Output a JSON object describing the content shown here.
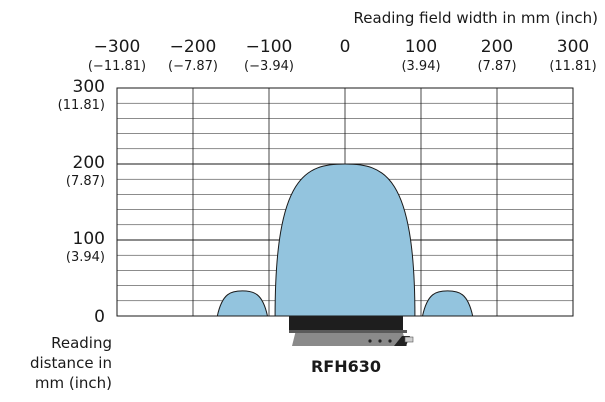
{
  "chart_data": {
    "type": "area",
    "title": "",
    "xlabel": "Reading field width in mm (inch)",
    "ylabel_lines": [
      "Reading",
      "distance in",
      "mm (inch)"
    ],
    "xlim": [
      -300,
      300
    ],
    "ylim": [
      0,
      300
    ],
    "x_ticks": [
      {
        "mm": "−300",
        "inch": "(−11.81)",
        "value": -300
      },
      {
        "mm": "−200",
        "inch": "(−7.87)",
        "value": -200
      },
      {
        "mm": "−100",
        "inch": "(−3.94)",
        "value": -100
      },
      {
        "mm": "0",
        "inch": "",
        "value": 0
      },
      {
        "mm": "100",
        "inch": "(3.94)",
        "value": 100
      },
      {
        "mm": "200",
        "inch": "(7.87)",
        "value": 200
      },
      {
        "mm": "300",
        "inch": "(11.81)",
        "value": 300
      }
    ],
    "y_ticks": [
      {
        "mm": "300",
        "inch": "(11.81)",
        "value": 300
      },
      {
        "mm": "200",
        "inch": "(7.87)",
        "value": 200
      },
      {
        "mm": "100",
        "inch": "(3.94)",
        "value": 100
      },
      {
        "mm": "0",
        "inch": "",
        "value": 0
      }
    ],
    "grid": true,
    "x_grid_step": 100,
    "y_minor_step": 20,
    "reading_field": {
      "fill": "#93c4de",
      "stroke": "#1a1a1a",
      "main_lobe": {
        "half_width_at_base": 92,
        "max_distance": 200
      },
      "side_lobes": [
        {
          "center": -135,
          "half_width": 33,
          "max_distance": 33
        },
        {
          "center": 135,
          "half_width": 33,
          "max_distance": 33
        }
      ]
    },
    "device": {
      "label": "RFH630"
    }
  }
}
